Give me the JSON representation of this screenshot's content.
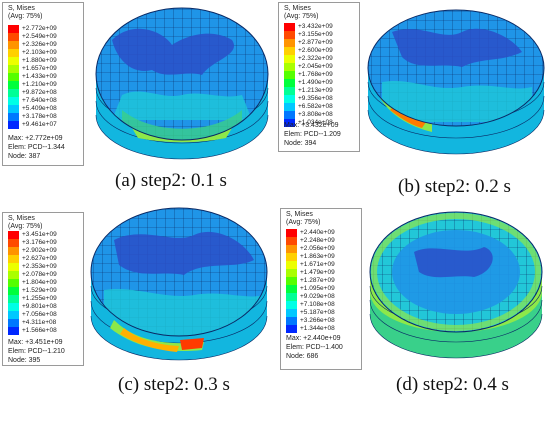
{
  "legend_colors": [
    "#ff0000",
    "#ff4a00",
    "#ff9400",
    "#ffd000",
    "#ecff00",
    "#aaff00",
    "#55ff00",
    "#00ff3c",
    "#00ff96",
    "#00ffe6",
    "#00c8ff",
    "#0078ff",
    "#0028ff"
  ],
  "panels": [
    {
      "caption": "(a) step2:  0.1 s",
      "legend": {
        "title": "S, Mises",
        "subtitle": "(Avg: 75%)",
        "values": [
          "+2.772e+09",
          "+2.549e+09",
          "+2.326e+09",
          "+2.103e+09",
          "+1.880e+09",
          "+1.657e+09",
          "+1.433e+09",
          "+1.210e+09",
          "+9.872e+08",
          "+7.640e+08",
          "+5.409e+08",
          "+3.178e+08",
          "+9.461e+07"
        ],
        "max": "Max: +2.772e+09",
        "elem": "Elem: PCD--1.344",
        "node": "Node: 387"
      }
    },
    {
      "caption": "(b) step2:  0.2 s",
      "legend": {
        "title": "S, Mises",
        "subtitle": "(Avg: 75%)",
        "values": [
          "+3.432e+09",
          "+3.155e+09",
          "+2.877e+09",
          "+2.600e+09",
          "+2.322e+09",
          "+2.045e+09",
          "+1.768e+09",
          "+1.490e+09",
          "+1.213e+09",
          "+9.356e+08",
          "+6.582e+08",
          "+3.808e+08",
          "+1.034e+08"
        ],
        "max": "Max: +3.432e+09",
        "elem": "Elem: PCD--1.209",
        "node": "Node: 394"
      }
    },
    {
      "caption": "(c) step2:  0.3 s",
      "legend": {
        "title": "S, Mises",
        "subtitle": "(Avg: 75%)",
        "values": [
          "+3.451e+09",
          "+3.176e+09",
          "+2.902e+09",
          "+2.627e+09",
          "+2.353e+09",
          "+2.078e+09",
          "+1.804e+09",
          "+1.529e+09",
          "+1.255e+09",
          "+9.801e+08",
          "+7.056e+08",
          "+4.311e+08",
          "+1.566e+08"
        ],
        "max": "Max: +3.451e+09",
        "elem": "Elem: PCD--1.210",
        "node": "Node: 395"
      }
    },
    {
      "caption": "(d) step2:  0.4 s",
      "legend": {
        "title": "S, Mises",
        "subtitle": "(Avg: 75%)",
        "values": [
          "+2.440e+09",
          "+2.248e+09",
          "+2.056e+09",
          "+1.863e+09",
          "+1.671e+09",
          "+1.479e+09",
          "+1.287e+09",
          "+1.095e+09",
          "+9.029e+08",
          "+7.108e+08",
          "+5.187e+08",
          "+3.266e+08",
          "+1.344e+08"
        ],
        "max": "Max: +2.440e+09",
        "elem": "Elem: PCD--1.400",
        "node": "Node: 686"
      }
    }
  ]
}
